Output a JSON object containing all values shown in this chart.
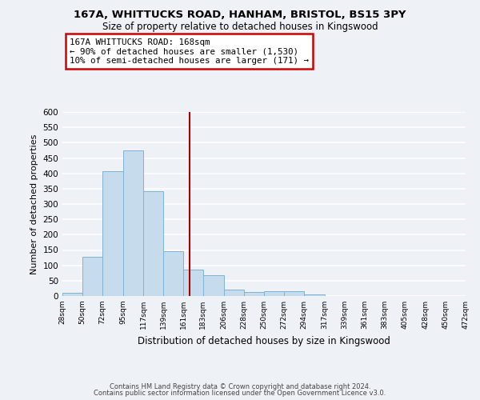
{
  "title_line1": "167A, WHITTUCKS ROAD, HANHAM, BRISTOL, BS15 3PY",
  "title_line2": "Size of property relative to detached houses in Kingswood",
  "xlabel": "Distribution of detached houses by size in Kingswood",
  "ylabel": "Number of detached properties",
  "bar_color": "#c6dcec",
  "bar_edge_color": "#7fb3d3",
  "vline_color": "#aa0000",
  "vline_x": 168,
  "bins": [
    28,
    50,
    72,
    95,
    117,
    139,
    161,
    183,
    206,
    228,
    250,
    272,
    294,
    317,
    339,
    361,
    383,
    405,
    428,
    450,
    472
  ],
  "counts": [
    10,
    127,
    406,
    475,
    341,
    147,
    87,
    68,
    22,
    12,
    16,
    15,
    5,
    1,
    0,
    0,
    0,
    0,
    0,
    0,
    2
  ],
  "ylim": [
    0,
    600
  ],
  "yticks": [
    0,
    50,
    100,
    150,
    200,
    250,
    300,
    350,
    400,
    450,
    500,
    550,
    600
  ],
  "annotation_line1": "167A WHITTUCKS ROAD: 168sqm",
  "annotation_line2": "← 90% of detached houses are smaller (1,530)",
  "annotation_line3": "10% of semi-detached houses are larger (171) →",
  "footer_line1": "Contains HM Land Registry data © Crown copyright and database right 2024.",
  "footer_line2": "Contains public sector information licensed under the Open Government Licence v3.0.",
  "background_color": "#eef2f7",
  "grid_color": "#ffffff"
}
